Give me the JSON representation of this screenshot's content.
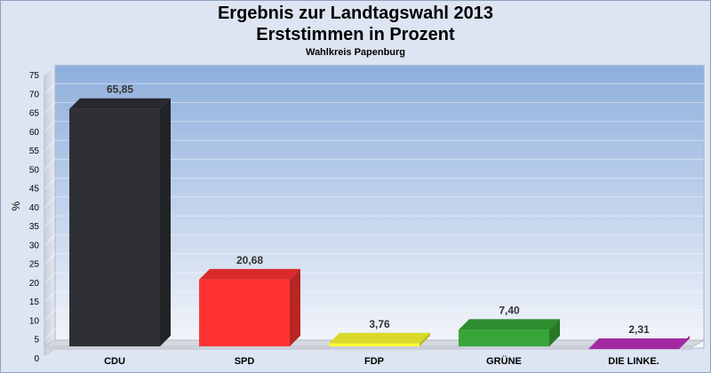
{
  "chart_data": {
    "type": "bar",
    "title": "Ergebnis zur Landtagswahl 2013",
    "subtitle_main": "Erststimmen in Prozent",
    "subtitle": "Wahlkreis Papenburg",
    "ylabel": "%",
    "xlabel": "",
    "ylim": [
      0,
      75
    ],
    "ytick_step": 5,
    "grid": true,
    "categories": [
      "CDU",
      "SPD",
      "FDP",
      "GRÜNE",
      "DIE LINKE."
    ],
    "values": [
      65.85,
      20.68,
      3.76,
      7.4,
      2.31
    ],
    "value_labels": [
      "65,85",
      "20,68",
      "3,76",
      "7,40",
      "2,31"
    ],
    "colors": [
      "#2e3035",
      "#ff3333",
      "#ffff33",
      "#37a537",
      "#c030c0"
    ]
  }
}
